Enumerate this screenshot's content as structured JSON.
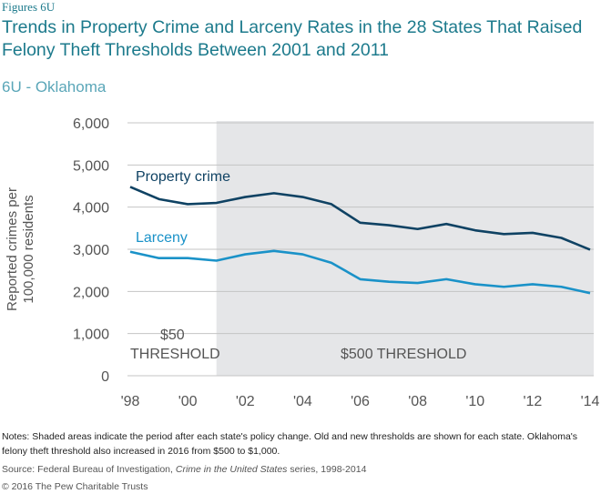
{
  "header": {
    "figure_label": "Figures 6U",
    "title": "Trends in Property Crime and Larceny Rates in the 28 States That Raised Felony Theft Thresholds Between 2001 and 2011",
    "subtitle": "6U - Oklahoma"
  },
  "chart_data": {
    "type": "line",
    "ylabel": "Reported crimes per 100,000 residents",
    "ylim": [
      0,
      6000
    ],
    "yticks": [
      "0",
      "1,000",
      "2,000",
      "3,000",
      "4,000",
      "5,000",
      "6,000"
    ],
    "x": [
      1998,
      1999,
      2000,
      2001,
      2002,
      2003,
      2004,
      2005,
      2006,
      2007,
      2008,
      2009,
      2010,
      2011,
      2012,
      2013,
      2014
    ],
    "xticks": [
      "'98",
      "'00",
      "'02",
      "'04",
      "'06",
      "'08",
      "'10",
      "'12",
      "'14"
    ],
    "grid": true,
    "shaded_from": 2001,
    "annotations": {
      "old_threshold_1": "$50",
      "old_threshold_2": "THRESHOLD",
      "new_threshold": "$500 THRESHOLD"
    },
    "series": [
      {
        "name": "Property crime",
        "color": "#0f4263",
        "values": [
          4480,
          4190,
          4070,
          4100,
          4240,
          4330,
          4240,
          4070,
          3630,
          3570,
          3480,
          3600,
          3450,
          3360,
          3390,
          3270,
          2990
        ]
      },
      {
        "name": "Larceny",
        "color": "#1a92c8",
        "values": [
          2940,
          2790,
          2790,
          2730,
          2880,
          2960,
          2880,
          2680,
          2290,
          2230,
          2200,
          2290,
          2170,
          2110,
          2170,
          2110,
          1960
        ]
      }
    ],
    "colors": {
      "shade": "#e5e6e8",
      "grid": "#c4c4c4",
      "axis_text": "#555555"
    }
  },
  "footer": {
    "notes": "Notes: Shaded areas indicate the period after each state's policy change. Old and new thresholds are shown for each state. Oklahoma's felony theft threshold also increased in 2016 from $500 to $1,000.",
    "source_prefix": "Source: Federal Bureau of Investigation, ",
    "source_italic": "Crime in the United States",
    "source_suffix": " series, 1998-2014",
    "copyright": "© 2016 The Pew Charitable Trusts"
  }
}
